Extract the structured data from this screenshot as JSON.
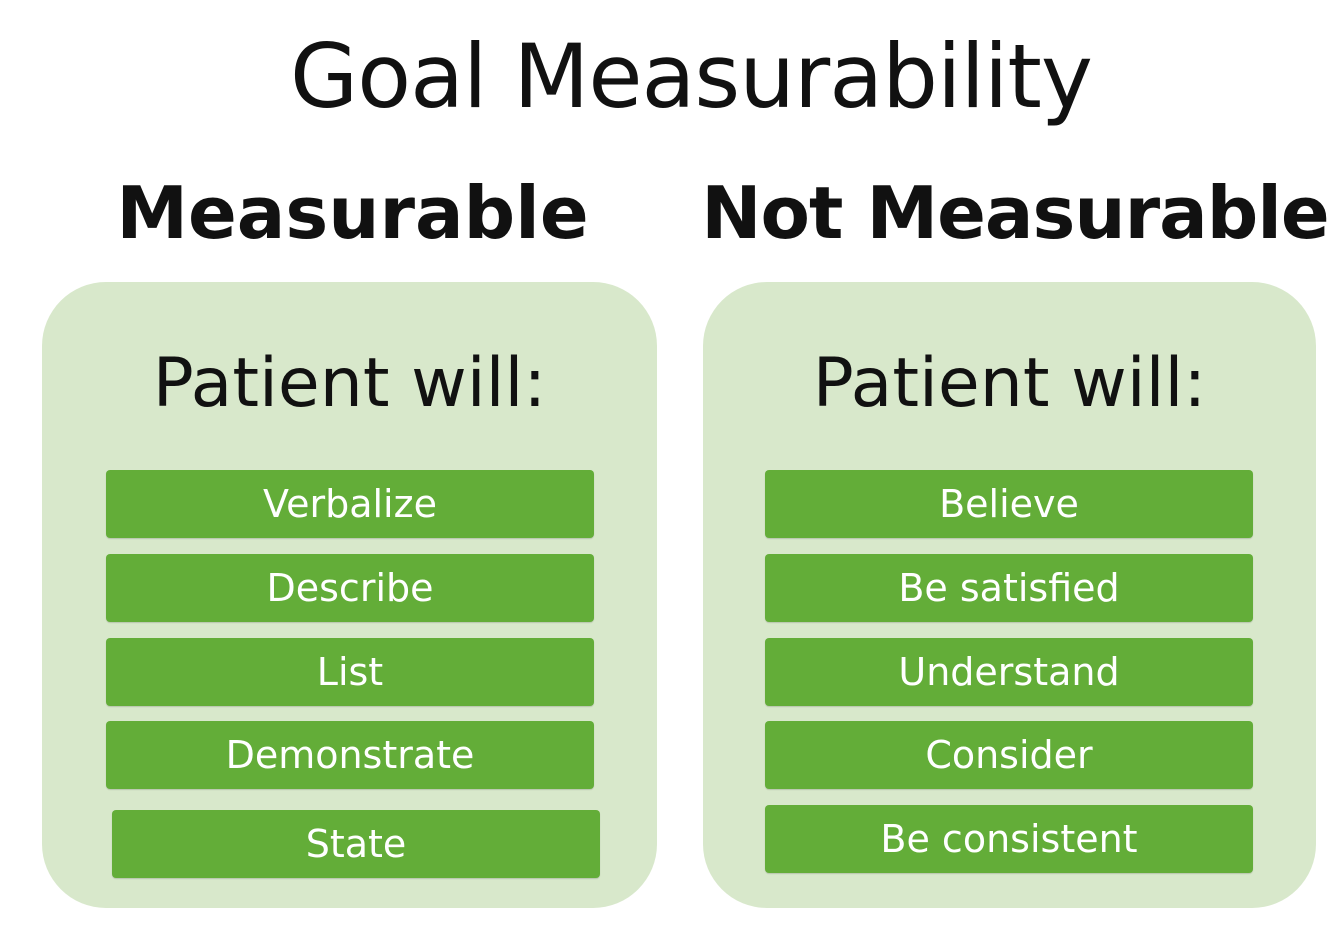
{
  "title": "Goal Measurability",
  "columns": [
    {
      "heading": "Measurable",
      "panel_heading": "Patient will:",
      "items": [
        "Verbalize",
        "Describe",
        "List",
        "Demonstrate",
        "State"
      ]
    },
    {
      "heading": "Not Measurable",
      "panel_heading": "Patient will:",
      "items": [
        "Believe",
        "Be satisfied",
        "Understand",
        "Consider",
        "Be consistent"
      ]
    }
  ],
  "colors": {
    "panel_background": "#d8e8cb",
    "item_background": "#63ad38",
    "item_text": "#ffffff",
    "text": "#111111"
  }
}
